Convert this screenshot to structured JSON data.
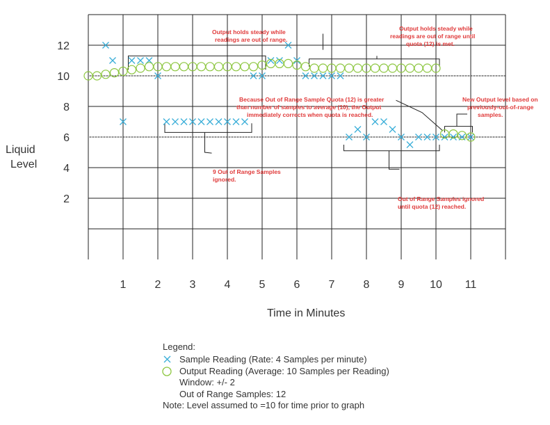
{
  "chart_data": {
    "type": "scatter",
    "title": "",
    "xlabel": "Time in Minutes",
    "ylabel_lines": [
      "Liquid",
      "Level"
    ],
    "xlim": [
      0,
      12
    ],
    "ylim": [
      -2,
      14
    ],
    "x_ticks": [
      1,
      2,
      3,
      4,
      5,
      6,
      7,
      8,
      9,
      10,
      11
    ],
    "y_ticks": [
      2,
      4,
      6,
      8,
      10,
      12
    ],
    "grid": true,
    "series": [
      {
        "name": "Sample Reading (Rate: 4 Samples per minute)",
        "marker": "x",
        "color": "#3aaed8",
        "points": [
          [
            0.5,
            12
          ],
          [
            0.7,
            11
          ],
          [
            1.0,
            7
          ],
          [
            1.25,
            11
          ],
          [
            1.5,
            11
          ],
          [
            1.75,
            11
          ],
          [
            2.0,
            10
          ],
          [
            2.25,
            7
          ],
          [
            2.5,
            7
          ],
          [
            2.75,
            7
          ],
          [
            3.0,
            7
          ],
          [
            3.25,
            7
          ],
          [
            3.5,
            7
          ],
          [
            3.75,
            7
          ],
          [
            4.0,
            7
          ],
          [
            4.25,
            7
          ],
          [
            4.5,
            7
          ],
          [
            4.75,
            10
          ],
          [
            5.0,
            10
          ],
          [
            5.25,
            11
          ],
          [
            5.5,
            11
          ],
          [
            5.75,
            12
          ],
          [
            6.0,
            11
          ],
          [
            6.25,
            10
          ],
          [
            6.5,
            10
          ],
          [
            6.75,
            10
          ],
          [
            7.0,
            10
          ],
          [
            7.25,
            10
          ],
          [
            7.5,
            6
          ],
          [
            7.75,
            6.5
          ],
          [
            8.0,
            6
          ],
          [
            8.25,
            7
          ],
          [
            8.5,
            7
          ],
          [
            8.75,
            6.5
          ],
          [
            9.0,
            6
          ],
          [
            9.25,
            5.5
          ],
          [
            9.5,
            6
          ],
          [
            9.75,
            6
          ],
          [
            10.0,
            6
          ],
          [
            10.25,
            6
          ],
          [
            10.5,
            6
          ],
          [
            10.75,
            6
          ],
          [
            11.0,
            6
          ]
        ]
      },
      {
        "name": "Output Reading (Average: 10 Samples per Reading)",
        "marker": "o",
        "color": "#8cc63f",
        "points": [
          [
            0.0,
            10
          ],
          [
            0.25,
            10
          ],
          [
            0.5,
            10.1
          ],
          [
            0.75,
            10.2
          ],
          [
            1.0,
            10.3
          ],
          [
            1.25,
            10.4
          ],
          [
            1.5,
            10.5
          ],
          [
            1.75,
            10.6
          ],
          [
            2.0,
            10.6
          ],
          [
            2.25,
            10.6
          ],
          [
            2.5,
            10.6
          ],
          [
            2.75,
            10.6
          ],
          [
            3.0,
            10.6
          ],
          [
            3.25,
            10.6
          ],
          [
            3.5,
            10.6
          ],
          [
            3.75,
            10.6
          ],
          [
            4.0,
            10.6
          ],
          [
            4.25,
            10.6
          ],
          [
            4.5,
            10.6
          ],
          [
            4.75,
            10.6
          ],
          [
            5.0,
            10.7
          ],
          [
            5.25,
            10.8
          ],
          [
            5.5,
            10.8
          ],
          [
            5.75,
            10.8
          ],
          [
            6.0,
            10.7
          ],
          [
            6.25,
            10.6
          ],
          [
            6.5,
            10.5
          ],
          [
            6.75,
            10.5
          ],
          [
            7.0,
            10.5
          ],
          [
            7.25,
            10.5
          ],
          [
            7.5,
            10.5
          ],
          [
            7.75,
            10.5
          ],
          [
            8.0,
            10.5
          ],
          [
            8.25,
            10.5
          ],
          [
            8.5,
            10.5
          ],
          [
            8.75,
            10.5
          ],
          [
            9.0,
            10.5
          ],
          [
            9.25,
            10.5
          ],
          [
            9.5,
            10.5
          ],
          [
            9.75,
            10.5
          ],
          [
            10.0,
            10.5
          ],
          [
            10.25,
            6.2
          ],
          [
            10.5,
            6.2
          ],
          [
            10.75,
            6.1
          ],
          [
            11.0,
            6.0
          ]
        ]
      }
    ],
    "annotations": [
      {
        "lines": [
          "Output holds steady while",
          "readings are out of range."
        ]
      },
      {
        "lines": [
          "Output holds steady while",
          "readings are out of range until",
          "quota (12) is met."
        ]
      },
      {
        "lines": [
          "Because Out of Range Sample Quota (12) is greater",
          "than number of samples to average (10), the Output",
          "immediately corrects when quota is reached."
        ]
      },
      {
        "lines": [
          "New Output level based on",
          "previously-out-of-range",
          "samples."
        ]
      },
      {
        "lines": [
          "9 Out of Range Samples",
          "ignored."
        ]
      },
      {
        "lines": [
          "Out of Range Samples ignored",
          "until quota (12) reached."
        ]
      }
    ],
    "legend": {
      "title": "Legend:",
      "lines": [
        "Sample Reading (Rate: 4 Samples per minute)",
        "Output Reading (Average: 10 Samples per Reading)",
        "Window: +/- 2",
        "Out of Range Samples: 12",
        "Note: Level assumed to =10 for time prior to graph"
      ]
    }
  }
}
